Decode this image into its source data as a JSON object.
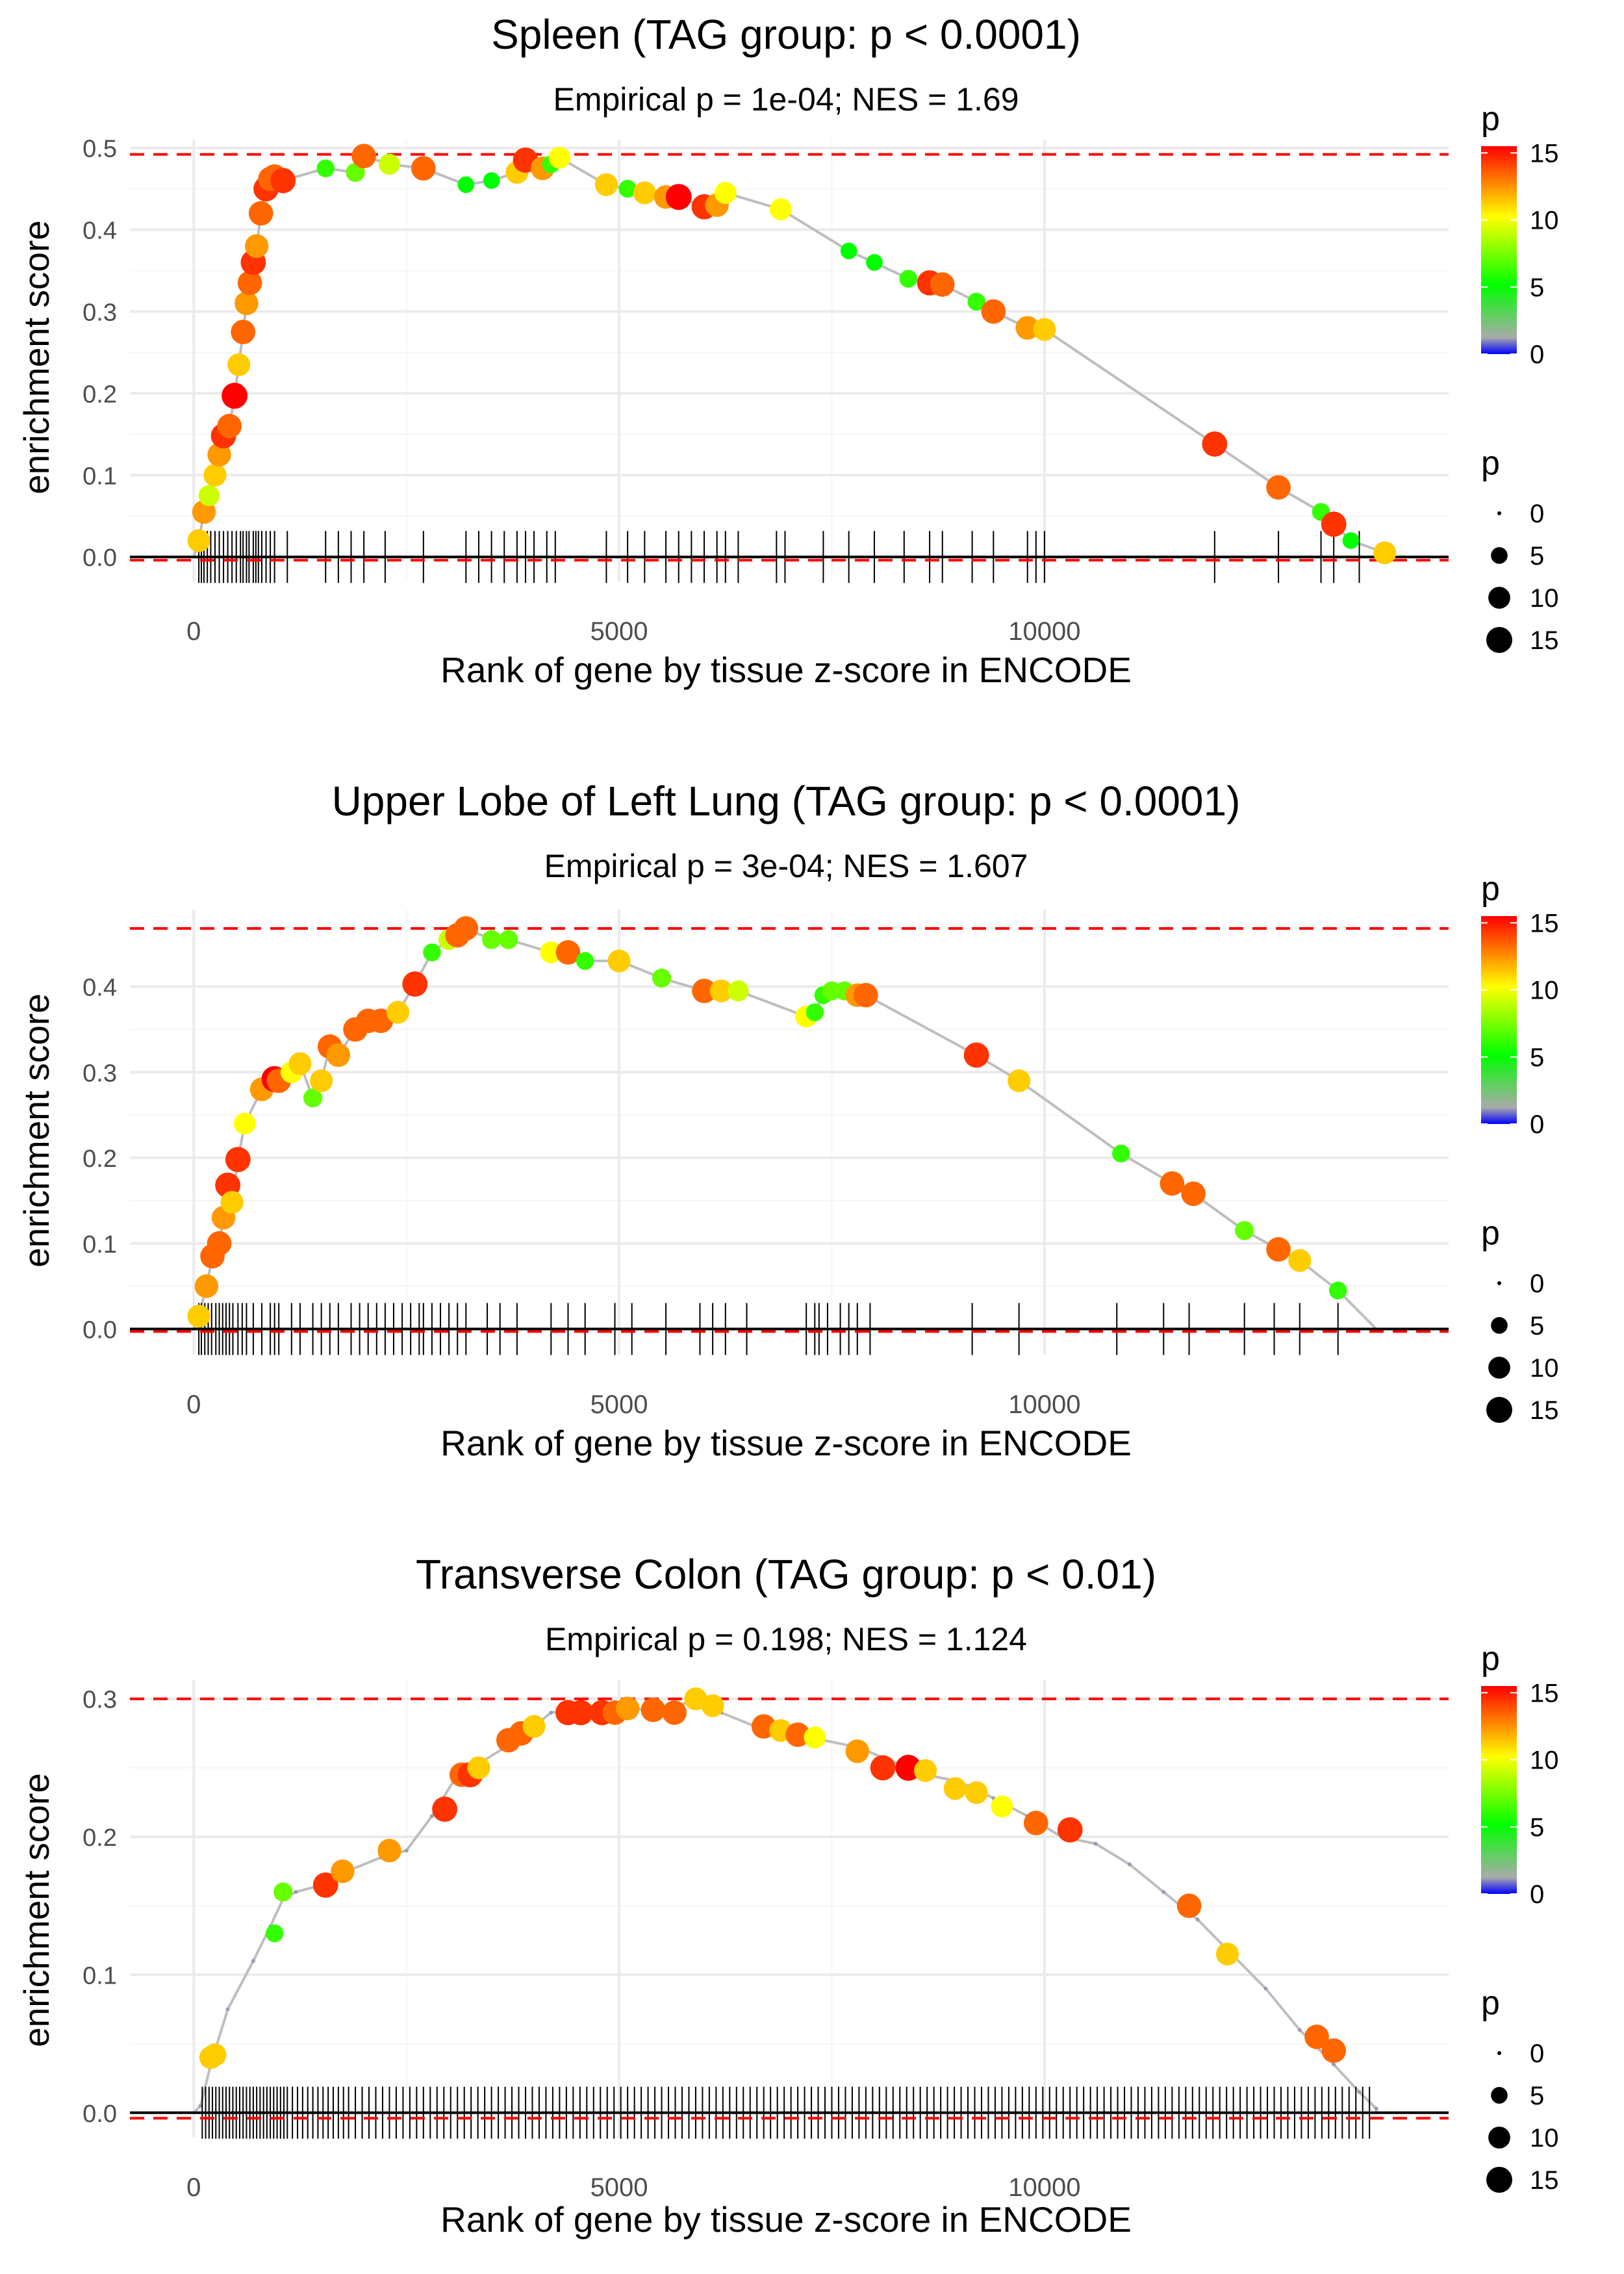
{
  "colors": {
    "threshold_line": "#ff0000",
    "curve": "#bebebe",
    "grid": "#ebebeb",
    "zero_line": "#000000",
    "scale_low": "#0000ff",
    "scale_mid_low": "#aaaaaa",
    "scale_mid": "#00ff00",
    "scale_mid_high": "#ffff00",
    "scale_high": "#ff0000"
  },
  "legends": {
    "color_title": "p",
    "color_breaks": [
      0,
      5,
      10,
      15
    ],
    "color_labels": [
      "0",
      "5",
      "10",
      "15"
    ],
    "size_title": "p",
    "size_breaks": [
      0,
      5,
      10,
      15
    ],
    "size_labels": [
      "0",
      "5",
      "10",
      "15"
    ]
  },
  "chart_data": [
    {
      "type": "scatter",
      "title": "Spleen (TAG group: p < 0.0001)",
      "subtitle": "Empirical p = 1e-04; NES = 1.69",
      "xlabel": "Rank of gene by tissue z-score in ENCODE",
      "ylabel": "enrichment score",
      "xlim": [
        -750,
        14750
      ],
      "ylim": [
        -0.03,
        0.51
      ],
      "xticks": [
        0,
        5000,
        10000
      ],
      "xtick_labels": [
        "0",
        "5000",
        "10000"
      ],
      "yticks": [
        0,
        0.1,
        0.2,
        0.3,
        0.4,
        0.5
      ],
      "ytick_labels": [
        "0.0",
        "0.1",
        "0.2",
        "0.3",
        "0.4",
        "0.5"
      ],
      "max_es": 0.492,
      "min_es": -0.004,
      "series": [
        {
          "name": "leading points",
          "x": [
            60,
            120,
            180,
            250,
            300,
            350,
            420,
            480,
            530,
            580,
            620,
            660,
            700,
            740,
            790,
            850,
            900,
            950,
            1050,
            1550,
            1900,
            2000,
            2300,
            2700,
            3200,
            3500,
            3800,
            3900,
            4100,
            4200,
            4300,
            4850,
            5100,
            5300,
            5550,
            5700,
            6000,
            6150,
            6250,
            6900,
            7700,
            8000,
            8400,
            8650,
            8800,
            9200,
            9400,
            9800,
            10000,
            12000,
            12750,
            13250,
            13400,
            13600,
            14000
          ],
          "y": [
            0.02,
            0.055,
            0.075,
            0.1,
            0.125,
            0.148,
            0.16,
            0.197,
            0.235,
            0.275,
            0.31,
            0.335,
            0.36,
            0.38,
            0.42,
            0.45,
            0.462,
            0.465,
            0.46,
            0.475,
            0.47,
            0.49,
            0.48,
            0.475,
            0.455,
            0.46,
            0.47,
            0.485,
            0.475,
            0.48,
            0.488,
            0.455,
            0.45,
            0.445,
            0.44,
            0.44,
            0.428,
            0.43,
            0.445,
            0.425,
            0.374,
            0.36,
            0.34,
            0.335,
            0.333,
            0.312,
            0.3,
            0.28,
            0.278,
            0.138,
            0.085,
            0.055,
            0.04,
            0.02,
            0.005
          ],
          "p": [
            11,
            12,
            9,
            11,
            12,
            14,
            13,
            15,
            11,
            13,
            12,
            13,
            14,
            12,
            13,
            14,
            13,
            13,
            14,
            6,
            7,
            13,
            9,
            13,
            5,
            5,
            11,
            14,
            12,
            6,
            10,
            11,
            6,
            11,
            12,
            15,
            14,
            12,
            10,
            10,
            5,
            5,
            6,
            14,
            13,
            6,
            13,
            12,
            11,
            14,
            13,
            6,
            14,
            5,
            11
          ]
        }
      ],
      "gene_ranks": [
        60,
        90,
        120,
        160,
        200,
        250,
        300,
        350,
        400,
        450,
        500,
        550,
        580,
        620,
        650,
        700,
        730,
        760,
        800,
        850,
        900,
        950,
        1100,
        1550,
        1700,
        1850,
        2000,
        2250,
        2700,
        3200,
        3350,
        3500,
        3650,
        3800,
        3900,
        4000,
        4150,
        4250,
        4850,
        5100,
        5300,
        5550,
        5700,
        5850,
        6000,
        6150,
        6250,
        6400,
        6850,
        6950,
        7400,
        7700,
        8000,
        8350,
        8650,
        8800,
        9150,
        9400,
        9800,
        9900,
        10000,
        12000,
        12750,
        13250,
        13400,
        13700
      ]
    },
    {
      "type": "scatter",
      "title": "Upper Lobe of Left Lung (TAG group: p < 0.0001)",
      "subtitle": "Empirical p = 3e-04; NES = 1.607",
      "xlabel": "Rank of gene by tissue z-score in ENCODE",
      "ylabel": "enrichment score",
      "xlim": [
        -750,
        14750
      ],
      "ylim": [
        -0.03,
        0.49
      ],
      "xticks": [
        0,
        5000,
        10000
      ],
      "xtick_labels": [
        "0",
        "5000",
        "10000"
      ],
      "yticks": [
        0,
        0.1,
        0.2,
        0.3,
        0.4
      ],
      "ytick_labels": [
        "0.0",
        "0.1",
        "0.2",
        "0.3",
        "0.4"
      ],
      "max_es": 0.468,
      "min_es": -0.003,
      "series": [
        {
          "name": "leading points",
          "x": [
            60,
            150,
            220,
            300,
            350,
            400,
            450,
            520,
            600,
            800,
            950,
            1000,
            1150,
            1250,
            1400,
            1500,
            1600,
            1700,
            1900,
            2050,
            2200,
            2400,
            2600,
            2800,
            3000,
            3100,
            3200,
            3500,
            3700,
            4200,
            4400,
            4600,
            5000,
            5500,
            6000,
            6200,
            6400,
            7200,
            7300,
            7400,
            7500,
            7650,
            7800,
            7900,
            9200,
            9700,
            10900,
            11500,
            11750,
            12350,
            12750,
            13000,
            13450
          ],
          "y": [
            0.015,
            0.05,
            0.085,
            0.1,
            0.13,
            0.168,
            0.148,
            0.198,
            0.24,
            0.28,
            0.292,
            0.29,
            0.3,
            0.31,
            0.27,
            0.29,
            0.33,
            0.32,
            0.35,
            0.36,
            0.36,
            0.37,
            0.403,
            0.44,
            0.455,
            0.46,
            0.468,
            0.455,
            0.455,
            0.44,
            0.44,
            0.43,
            0.43,
            0.41,
            0.395,
            0.395,
            0.395,
            0.365,
            0.37,
            0.39,
            0.395,
            0.395,
            0.39,
            0.39,
            0.32,
            0.29,
            0.205,
            0.17,
            0.158,
            0.115,
            0.093,
            0.08,
            0.045
          ],
          "p": [
            11,
            12,
            13,
            13,
            12,
            14,
            11,
            14,
            10,
            12,
            15,
            13,
            10,
            11,
            7,
            11,
            13,
            12,
            13,
            13,
            13,
            11,
            14,
            6,
            9,
            13,
            13,
            7,
            7,
            10,
            13,
            6,
            11,
            7,
            13,
            11,
            9,
            10,
            6,
            6,
            7,
            7,
            12,
            13,
            14,
            11,
            6,
            13,
            13,
            7,
            13,
            11,
            6
          ]
        }
      ],
      "gene_ranks": [
        60,
        90,
        130,
        170,
        210,
        260,
        300,
        340,
        380,
        420,
        460,
        520,
        570,
        620,
        700,
        800,
        900,
        950,
        1000,
        1150,
        1250,
        1400,
        1500,
        1600,
        1700,
        1850,
        1950,
        2050,
        2150,
        2250,
        2350,
        2450,
        2550,
        2650,
        2700,
        2800,
        2900,
        3000,
        3100,
        3200,
        3450,
        3600,
        3800,
        4200,
        4400,
        4600,
        4950,
        5150,
        5550,
        5950,
        6100,
        6250,
        6500,
        7200,
        7300,
        7350,
        7450,
        7600,
        7700,
        7800,
        7950,
        9150,
        9700,
        10850,
        11400,
        11700,
        12350,
        12700,
        13000,
        13450
      ]
    },
    {
      "type": "scatter",
      "title": "Transverse Colon (TAG group: p < 0.01)",
      "subtitle": "Empirical p = 0.198; NES = 1.124",
      "xlabel": "Rank of gene by tissue z-score in ENCODE",
      "ylabel": "enrichment score",
      "xlim": [
        -750,
        14750
      ],
      "ylim": [
        -0.018,
        0.314
      ],
      "xticks": [
        0,
        5000,
        10000
      ],
      "xtick_labels": [
        "0",
        "5000",
        "10000"
      ],
      "yticks": [
        0,
        0.1,
        0.2,
        0.3
      ],
      "ytick_labels": [
        "0.0",
        "0.1",
        "0.2",
        "0.3"
      ],
      "max_es": 0.3,
      "min_es": -0.004,
      "series": [
        {
          "name": "curve",
          "x": [
            80,
            200,
            400,
            700,
            900,
            1050,
            1200,
            1500,
            1800,
            2200,
            2500,
            2800,
            3100,
            3400,
            3800,
            4200,
            4600,
            5000,
            5300,
            5600,
            5900,
            6200,
            6600,
            7000,
            7400,
            7800,
            8200,
            8600,
            9000,
            9400,
            9800,
            10200,
            10600,
            11000,
            11400,
            11800,
            12200,
            12600,
            13000,
            13400,
            13700,
            13900
          ],
          "y": [
            0.005,
            0.035,
            0.075,
            0.11,
            0.135,
            0.155,
            0.16,
            0.165,
            0.175,
            0.185,
            0.19,
            0.215,
            0.245,
            0.255,
            0.27,
            0.29,
            0.293,
            0.295,
            0.292,
            0.295,
            0.298,
            0.29,
            0.28,
            0.275,
            0.27,
            0.265,
            0.255,
            0.245,
            0.24,
            0.228,
            0.215,
            0.2,
            0.195,
            0.18,
            0.16,
            0.14,
            0.115,
            0.09,
            0.06,
            0.035,
            0.015,
            0.003
          ],
          "p": []
        },
        {
          "name": "leading points",
          "x": [
            200,
            250,
            950,
            1050,
            1550,
            1750,
            2300,
            2950,
            3150,
            3250,
            3350,
            3700,
            3850,
            4000,
            4400,
            4550,
            4800,
            4950,
            5100,
            5400,
            5650,
            5900,
            6100,
            6700,
            6900,
            7100,
            7300,
            7800,
            8100,
            8400,
            8600,
            8950,
            9200,
            9500,
            9900,
            10300,
            11700,
            12150,
            13200,
            13400
          ],
          "y": [
            0.04,
            0.042,
            0.13,
            0.16,
            0.165,
            0.175,
            0.19,
            0.22,
            0.245,
            0.245,
            0.25,
            0.27,
            0.275,
            0.28,
            0.29,
            0.29,
            0.29,
            0.29,
            0.293,
            0.292,
            0.29,
            0.3,
            0.295,
            0.28,
            0.277,
            0.274,
            0.272,
            0.262,
            0.25,
            0.25,
            0.248,
            0.235,
            0.232,
            0.222,
            0.21,
            0.205,
            0.15,
            0.115,
            0.055,
            0.045
          ],
          "p": [
            11,
            11,
            6,
            7,
            14,
            12,
            12,
            14,
            13,
            14,
            11,
            13,
            13,
            11,
            14,
            14,
            14,
            13,
            12,
            13,
            13,
            11,
            11,
            13,
            11,
            13,
            10,
            12,
            14,
            15,
            11,
            11,
            11,
            10,
            13,
            14,
            13,
            11,
            13,
            13
          ]
        }
      ],
      "gene_ranks": [
        100,
        140,
        180,
        220,
        260,
        300,
        340,
        380,
        420,
        460,
        500,
        540,
        580,
        620,
        660,
        700,
        740,
        780,
        820,
        860,
        900,
        940,
        980,
        1020,
        1060,
        1100,
        1160,
        1220,
        1280,
        1340,
        1400,
        1460,
        1520,
        1580,
        1640,
        1700,
        1760,
        1820,
        1900,
        1980,
        2060,
        2140,
        2220,
        2300,
        2380,
        2460,
        2540,
        2620,
        2700,
        2780,
        2860,
        2940,
        3020,
        3100,
        3180,
        3260,
        3340,
        3420,
        3500,
        3580,
        3660,
        3740,
        3820,
        3900,
        3980,
        4060,
        4140,
        4220,
        4300,
        4380,
        4460,
        4540,
        4620,
        4700,
        4780,
        4860,
        4940,
        5020,
        5100,
        5180,
        5260,
        5340,
        5420,
        5500,
        5580,
        5660,
        5740,
        5820,
        5900,
        5980,
        6060,
        6140,
        6220,
        6300,
        6380,
        6460,
        6540,
        6620,
        6700,
        6780,
        6860,
        6940,
        7020,
        7100,
        7180,
        7260,
        7340,
        7420,
        7500,
        7580,
        7660,
        7740,
        7820,
        7900,
        7980,
        8060,
        8140,
        8220,
        8300,
        8380,
        8460,
        8540,
        8620,
        8700,
        8780,
        8860,
        8940,
        9020,
        9100,
        9180,
        9260,
        9340,
        9420,
        9500,
        9580,
        9660,
        9740,
        9820,
        9900,
        9980,
        10060,
        10140,
        10220,
        10300,
        10380,
        10460,
        10540,
        10620,
        10700,
        10780,
        10860,
        10940,
        11020,
        11100,
        11180,
        11260,
        11340,
        11420,
        11500,
        11580,
        11660,
        11740,
        11820,
        11900,
        11980,
        12060,
        12140,
        12220,
        12300,
        12380,
        12460,
        12540,
        12620,
        12700,
        12780,
        12860,
        12940,
        13020,
        13100,
        13180,
        13260,
        13340,
        13420,
        13500,
        13580,
        13660,
        13740,
        13820
      ]
    }
  ]
}
